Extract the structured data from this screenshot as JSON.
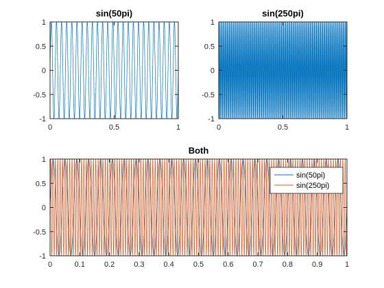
{
  "chart_data": [
    {
      "id": "top-left",
      "type": "line",
      "title": "sin(50pi)",
      "xlabel": "",
      "ylabel": "",
      "xlim": [
        0,
        1
      ],
      "ylim": [
        -1,
        1
      ],
      "xticks": [
        0,
        0.5,
        1
      ],
      "xtick_labels": [
        "0",
        "0.5",
        "1"
      ],
      "yticks": [
        -1,
        -0.5,
        0,
        0.5,
        1
      ],
      "ytick_labels": [
        "-1",
        "-0.5",
        "0",
        "0.5",
        "1"
      ],
      "grid": false,
      "series": [
        {
          "function": "sin(50*pi*x)",
          "frequency_hz": 25,
          "color": "#0072BD",
          "x_range": [
            0,
            1
          ]
        }
      ]
    },
    {
      "id": "top-right",
      "type": "line",
      "title": "sin(250pi)",
      "xlabel": "",
      "ylabel": "",
      "xlim": [
        0,
        1
      ],
      "ylim": [
        -1,
        1
      ],
      "xticks": [
        0,
        0.5,
        1
      ],
      "xtick_labels": [
        "0",
        "0.5",
        "1"
      ],
      "yticks": [
        -1,
        -0.5,
        0,
        0.5,
        1
      ],
      "ytick_labels": [
        "-1",
        "-0.5",
        "0",
        "0.5",
        "1"
      ],
      "grid": false,
      "series": [
        {
          "function": "sin(250*pi*x)",
          "frequency_hz": 125,
          "color": "#0072BD",
          "x_range": [
            0,
            1
          ]
        }
      ]
    },
    {
      "id": "bottom",
      "type": "line",
      "title": "Both",
      "xlabel": "",
      "ylabel": "",
      "xlim": [
        0,
        1
      ],
      "ylim": [
        -1,
        1
      ],
      "xticks": [
        0,
        0.1,
        0.2,
        0.3,
        0.4,
        0.5,
        0.6,
        0.7,
        0.8,
        0.9,
        1
      ],
      "xtick_labels": [
        "0",
        "0.1",
        "0.2",
        "0.3",
        "0.4",
        "0.5",
        "0.6",
        "0.7",
        "0.8",
        "0.9",
        "1"
      ],
      "yticks": [
        -1,
        -0.5,
        0,
        0.5,
        1
      ],
      "ytick_labels": [
        "-1",
        "-0.5",
        "0",
        "0.5",
        "1"
      ],
      "grid": false,
      "legend": {
        "placement": "top-right",
        "entries": [
          "sin(50pi)",
          "sin(250pi)"
        ]
      },
      "series": [
        {
          "name": "sin(50pi)",
          "function": "sin(50*pi*x)",
          "frequency_hz": 25,
          "color": "#0072BD",
          "x_range": [
            0,
            1
          ]
        },
        {
          "name": "sin(250pi)",
          "function": "sin(250*pi*x)",
          "frequency_hz": 125,
          "color": "#D95319",
          "x_range": [
            0,
            1
          ]
        }
      ]
    }
  ]
}
